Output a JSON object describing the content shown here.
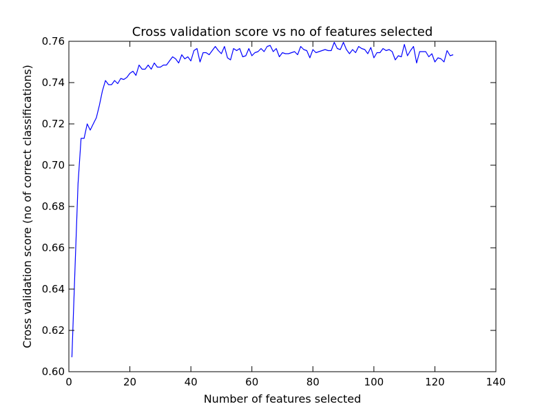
{
  "chart_data": {
    "type": "line",
    "title": "Cross validation score vs no of features selected",
    "xlabel": "Number of features selected",
    "ylabel": "Cross validation score (no of correct classifications)",
    "xlim": [
      0,
      140
    ],
    "ylim": [
      0.6,
      0.76
    ],
    "xticks": [
      0,
      20,
      40,
      60,
      80,
      100,
      120,
      140
    ],
    "xtick_labels": [
      "0",
      "20",
      "40",
      "60",
      "80",
      "100",
      "120",
      "140"
    ],
    "yticks": [
      0.6,
      0.62,
      0.64,
      0.66,
      0.68,
      0.7,
      0.72,
      0.74,
      0.76
    ],
    "ytick_labels": [
      "0.60",
      "0.62",
      "0.64",
      "0.66",
      "0.68",
      "0.70",
      "0.72",
      "0.74",
      "0.76"
    ],
    "grid": false,
    "series": [
      {
        "color": "#0000ff",
        "x": [
          1,
          2,
          3,
          4,
          5,
          6,
          7,
          8,
          9,
          10,
          11,
          12,
          13,
          14,
          15,
          16,
          17,
          18,
          19,
          20,
          21,
          22,
          23,
          24,
          25,
          26,
          27,
          28,
          29,
          30,
          31,
          32,
          33,
          34,
          35,
          36,
          37,
          38,
          39,
          40,
          41,
          42,
          43,
          44,
          45,
          46,
          47,
          48,
          49,
          50,
          51,
          52,
          53,
          54,
          55,
          56,
          57,
          58,
          59,
          60,
          61,
          62,
          63,
          64,
          65,
          66,
          67,
          68,
          69,
          70,
          71,
          72,
          73,
          74,
          75,
          76,
          77,
          78,
          79,
          80,
          81,
          82,
          83,
          84,
          85,
          86,
          87,
          88,
          89,
          90,
          91,
          92,
          93,
          94,
          95,
          96,
          97,
          98,
          99,
          100,
          101,
          102,
          103,
          104,
          105,
          106,
          107,
          108,
          109,
          110,
          111,
          112,
          113,
          114,
          115,
          116,
          117,
          118,
          119,
          120,
          121,
          122,
          123,
          124,
          125,
          126
        ],
        "y": [
          0.607,
          0.65,
          0.691,
          0.713,
          0.713,
          0.72,
          0.717,
          0.72,
          0.723,
          0.729,
          0.736,
          0.741,
          0.739,
          0.739,
          0.741,
          0.7395,
          0.742,
          0.7415,
          0.7425,
          0.7445,
          0.7455,
          0.7435,
          0.7485,
          0.7465,
          0.7465,
          0.7485,
          0.7465,
          0.7495,
          0.7475,
          0.7475,
          0.7485,
          0.7485,
          0.7505,
          0.7525,
          0.7515,
          0.7495,
          0.7535,
          0.7515,
          0.7525,
          0.7505,
          0.7555,
          0.7565,
          0.75,
          0.7545,
          0.7545,
          0.7535,
          0.7555,
          0.7575,
          0.7555,
          0.754,
          0.7575,
          0.752,
          0.751,
          0.7565,
          0.7555,
          0.7565,
          0.7525,
          0.753,
          0.7565,
          0.753,
          0.7545,
          0.755,
          0.7565,
          0.755,
          0.7575,
          0.758,
          0.755,
          0.7565,
          0.7525,
          0.7545,
          0.754,
          0.754,
          0.7545,
          0.755,
          0.7535,
          0.7575,
          0.756,
          0.7555,
          0.752,
          0.756,
          0.7545,
          0.755,
          0.7555,
          0.756,
          0.7555,
          0.7555,
          0.7595,
          0.7565,
          0.756,
          0.7595,
          0.756,
          0.754,
          0.756,
          0.7545,
          0.7575,
          0.7565,
          0.756,
          0.754,
          0.757,
          0.752,
          0.7545,
          0.7545,
          0.7565,
          0.7555,
          0.756,
          0.755,
          0.751,
          0.753,
          0.7525,
          0.7585,
          0.753,
          0.7555,
          0.7575,
          0.7495,
          0.755,
          0.755,
          0.755,
          0.7525,
          0.754,
          0.75,
          0.752,
          0.7515,
          0.75,
          0.7555,
          0.753,
          0.7535
        ]
      }
    ]
  }
}
